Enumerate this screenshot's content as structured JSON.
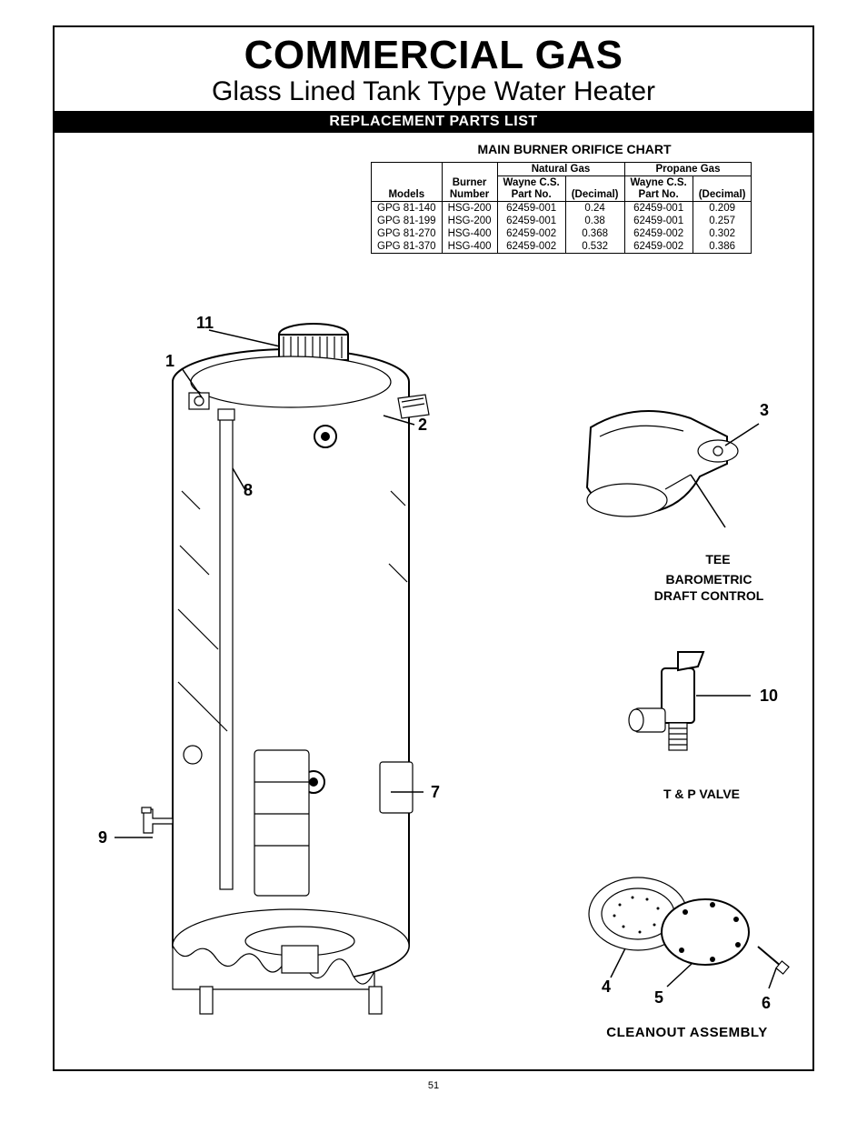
{
  "title_main": "COMMERCIAL GAS",
  "title_sub": "Glass Lined Tank Type Water Heater",
  "bar_label": "REPLACEMENT PARTS LIST",
  "chart_title": "MAIN BURNER ORIFICE CHART",
  "table": {
    "group_headers": {
      "natgas": "Natural Gas",
      "propane": "Propane Gas"
    },
    "col_headers": {
      "models": "Models",
      "burner": "Burner Number",
      "wayne1": "Wayne C.S. Part No.",
      "dec1": "(Decimal)",
      "wayne2": "Wayne C.S. Part No.",
      "dec2": "(Decimal)"
    },
    "rows": [
      {
        "model": "GPG 81-140",
        "burner": "HSG-200",
        "ng_part": "62459-001",
        "ng_dec": "0.24",
        "pg_part": "62459-001",
        "pg_dec": "0.209"
      },
      {
        "model": "GPG 81-199",
        "burner": "HSG-200",
        "ng_part": "62459-001",
        "ng_dec": "0.38",
        "pg_part": "62459-001",
        "pg_dec": "0.257"
      },
      {
        "model": "GPG 81-270",
        "burner": "HSG-400",
        "ng_part": "62459-002",
        "ng_dec": "0.368",
        "pg_part": "62459-002",
        "pg_dec": "0.302"
      },
      {
        "model": "GPG 81-370",
        "burner": "HSG-400",
        "ng_part": "62459-002",
        "ng_dec": "0.532",
        "pg_part": "62459-002",
        "pg_dec": "0.386"
      }
    ]
  },
  "callouts": {
    "c1": "1",
    "c2": "2",
    "c3": "3",
    "c4": "4",
    "c5": "5",
    "c6": "6",
    "c7": "7",
    "c8": "8",
    "c9": "9",
    "c10": "10",
    "c11": "11"
  },
  "labels": {
    "tee": "TEE",
    "baro1": "BAROMETRIC",
    "baro2": "DRAFT CONTROL",
    "tpvalve": "T & P VALVE",
    "cleanout": "CLEANOUT ASSEMBLY"
  },
  "page_number": "51",
  "colors": {
    "fg": "#000000",
    "bg": "#ffffff"
  }
}
